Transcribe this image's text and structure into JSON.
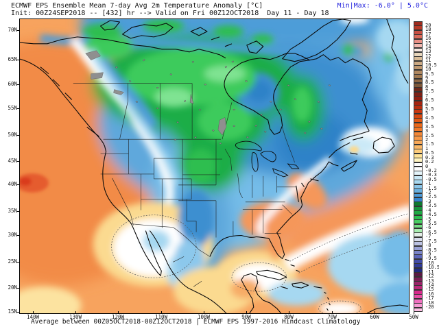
{
  "header": {
    "title": "ECMWF EPS Ensemble Mean 7-day Avg 2m Temperature Anomaly [°C]",
    "subtitle": "Init: 00Z24SEP2018 -- [432] hr --> Valid on Fri 00Z12OCT2018  Day 11 - Day 18",
    "minmax_label": "Min|Max: -6.0° | 5.0°C",
    "minmax_color": "#2323dd"
  },
  "footer": {
    "caption": "Average between 00Z05OCT2018-00Z12OCT2018 | ECMWF EPS 1997-2016 Hindcast Climatology"
  },
  "map": {
    "lat_labels": [
      "70N",
      "65N",
      "60N",
      "55N",
      "50N",
      "45N",
      "40N",
      "35N",
      "30N",
      "25N",
      "20N",
      "15N"
    ],
    "lon_labels": [
      "140W",
      "130W",
      "120W",
      "110W",
      "100W",
      "90W",
      "80W",
      "70W",
      "60W",
      "50W"
    ],
    "field_colors": {
      "warm_base": "#f7a35e",
      "warm_deep": "#f28b46",
      "hot_spot": "#e0512a",
      "yellow": "#fbda90",
      "neutral": "#ffffff",
      "cool_pale": "#cbe9f7",
      "cool_light": "#a6d8f1",
      "cool_mid": "#74bce8",
      "cool": "#4d9dd8",
      "cool_deep": "#2f82c8",
      "cold_green_dark": "#0e7a30",
      "cold_green": "#1fad47",
      "cold_green_bright": "#3dcb5b",
      "cold_green_pale": "#7fe392"
    }
  },
  "colorbar": {
    "tick_labels": [
      "20",
      "18",
      "17",
      "16",
      "15",
      "14",
      "13",
      "12",
      "11",
      "10.5",
      "10",
      "9.5",
      "9",
      "8.5",
      "8",
      "7.5",
      "7",
      "6.5",
      "6",
      "5.5",
      "5",
      "4.5",
      "4",
      "3.5",
      "3",
      "2.5",
      "2",
      "1.5",
      "1",
      "0.5",
      "0.3",
      "0.2",
      "0",
      "-0.2",
      "-0.3",
      "-0.5",
      "-1",
      "-1.5",
      "-2",
      "-2.5",
      "-3",
      "-3.5",
      "-4",
      "-4.5",
      "-5",
      "-5.5",
      "-6",
      "-6.5",
      "-7",
      "-7.5",
      "-8",
      "-8.5",
      "-9",
      "-9.5",
      "-10",
      "-10.5",
      "-11",
      "-12",
      "-13",
      "-14",
      "-15",
      "-16",
      "-17",
      "-18",
      "-20"
    ],
    "segment_colors": [
      "#9e2b1e",
      "#b73a28",
      "#c85043",
      "#d96a5a",
      "#e89086",
      "#f2b8b0",
      "#f8e8e0",
      "#e8d6bc",
      "#d8bc98",
      "#ccaa84",
      "#be9870",
      "#b08860",
      "#a07850",
      "#906844",
      "#7e5838",
      "#6e2818",
      "#7e2014",
      "#921e10",
      "#a62410",
      "#b82e10",
      "#c83810",
      "#d84810",
      "#e25812",
      "#ec6818",
      "#f07828",
      "#f48838",
      "#f69848",
      "#f8a858",
      "#fab868",
      "#fccc7c",
      "#fee296",
      "#fff4c0",
      "#ffffff",
      "#ffffff",
      "#e4f4fa",
      "#c8e8f6",
      "#a8d8f0",
      "#88c4e8",
      "#68b0e0",
      "#4c9ad8",
      "#3484cc",
      "#0e7a30",
      "#16953c",
      "#1eaa44",
      "#2abe4e",
      "#48ce62",
      "#74de84",
      "#a8ecb0",
      "#e4eee8",
      "#d8dcec",
      "#bcc2e2",
      "#9aa2d6",
      "#7a84c8",
      "#5c66ba",
      "#424ca8",
      "#303a96",
      "#202a80",
      "#5a1a44",
      "#7a1e56",
      "#9a2268",
      "#ba267a",
      "#d82a8c",
      "#e84ca6",
      "#f070c0",
      "#f898d4",
      "#fcc0e4"
    ]
  }
}
